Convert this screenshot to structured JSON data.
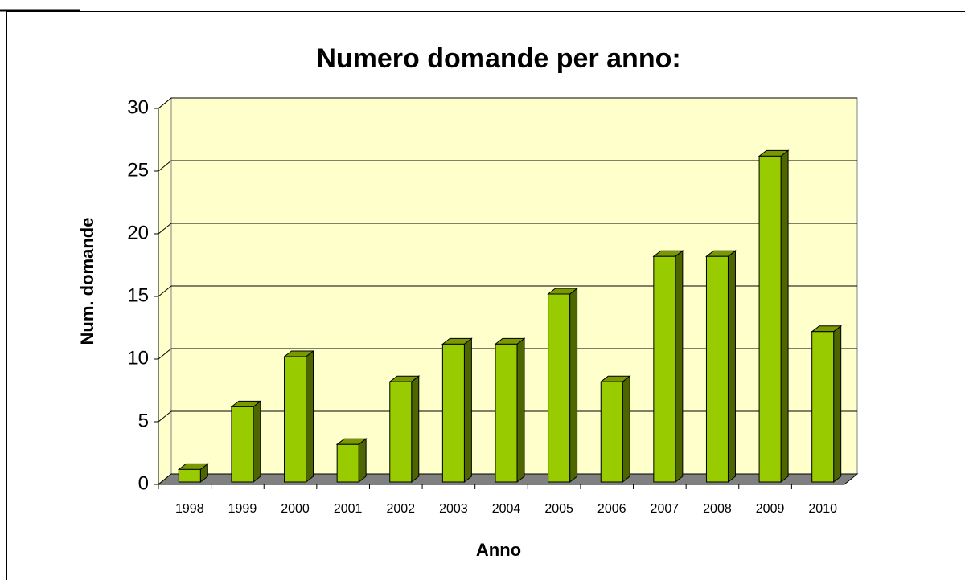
{
  "chart_data": {
    "type": "bar",
    "title": "Numero domande per anno:",
    "x_label": "Anno",
    "y_label": "Num. domande",
    "categories": [
      "1998",
      "1999",
      "2000",
      "2001",
      "2002",
      "2003",
      "2004",
      "2005",
      "2006",
      "2007",
      "2008",
      "2009",
      "2010"
    ],
    "values": [
      1,
      6,
      10,
      3,
      8,
      11,
      11,
      15,
      8,
      18,
      18,
      26,
      12
    ],
    "color": "#99cc00",
    "ylim": [
      0,
      30
    ],
    "yticks": [
      0,
      5,
      10,
      15,
      20,
      25,
      30
    ],
    "grid": true
  }
}
